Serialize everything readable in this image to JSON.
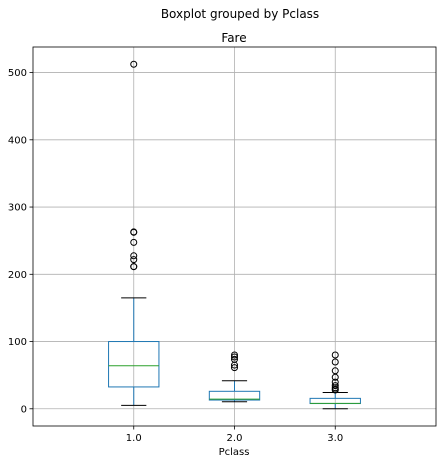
{
  "chart_data": {
    "type": "box",
    "suptitle": "Boxplot grouped by Pclass",
    "title": "Fare",
    "xlabel": "Pclass",
    "ylabel": "",
    "categories": [
      "1.0",
      "2.0",
      "3.0"
    ],
    "y_ticks": [
      0,
      100,
      200,
      300,
      400,
      500
    ],
    "ylim": [
      -25.6,
      538
    ],
    "grid": true,
    "colors": {
      "box": "#1f77b4",
      "median": "#2ca02c",
      "whisker": "#1f77b4",
      "cap": "#000000",
      "flier": "#000000",
      "grid": "#b0b0b0",
      "axes": "#000000"
    },
    "boxes": [
      {
        "category": "1.0",
        "q1": 32.5,
        "median": 64.0,
        "q3": 100.0,
        "whisker_low": 5.0,
        "whisker_high": 164.9,
        "fliers": [
          211.3,
          211.5,
          221.8,
          227.5,
          247.5,
          262.4,
          263.0,
          512.3
        ]
      },
      {
        "category": "2.0",
        "q1": 13.0,
        "median": 14.3,
        "q3": 26.0,
        "whisker_low": 10.5,
        "whisker_high": 41.6,
        "fliers": [
          61.2,
          65.0,
          73.5,
          77.0,
          80.0
        ]
      },
      {
        "category": "3.0",
        "q1": 7.8,
        "median": 8.05,
        "q3": 15.5,
        "whisker_low": 0.0,
        "whisker_high": 24.2,
        "fliers": [
          27.9,
          29.1,
          31.3,
          34.4,
          39.7,
          46.9,
          56.5,
          69.6,
          80.0
        ]
      }
    ]
  }
}
